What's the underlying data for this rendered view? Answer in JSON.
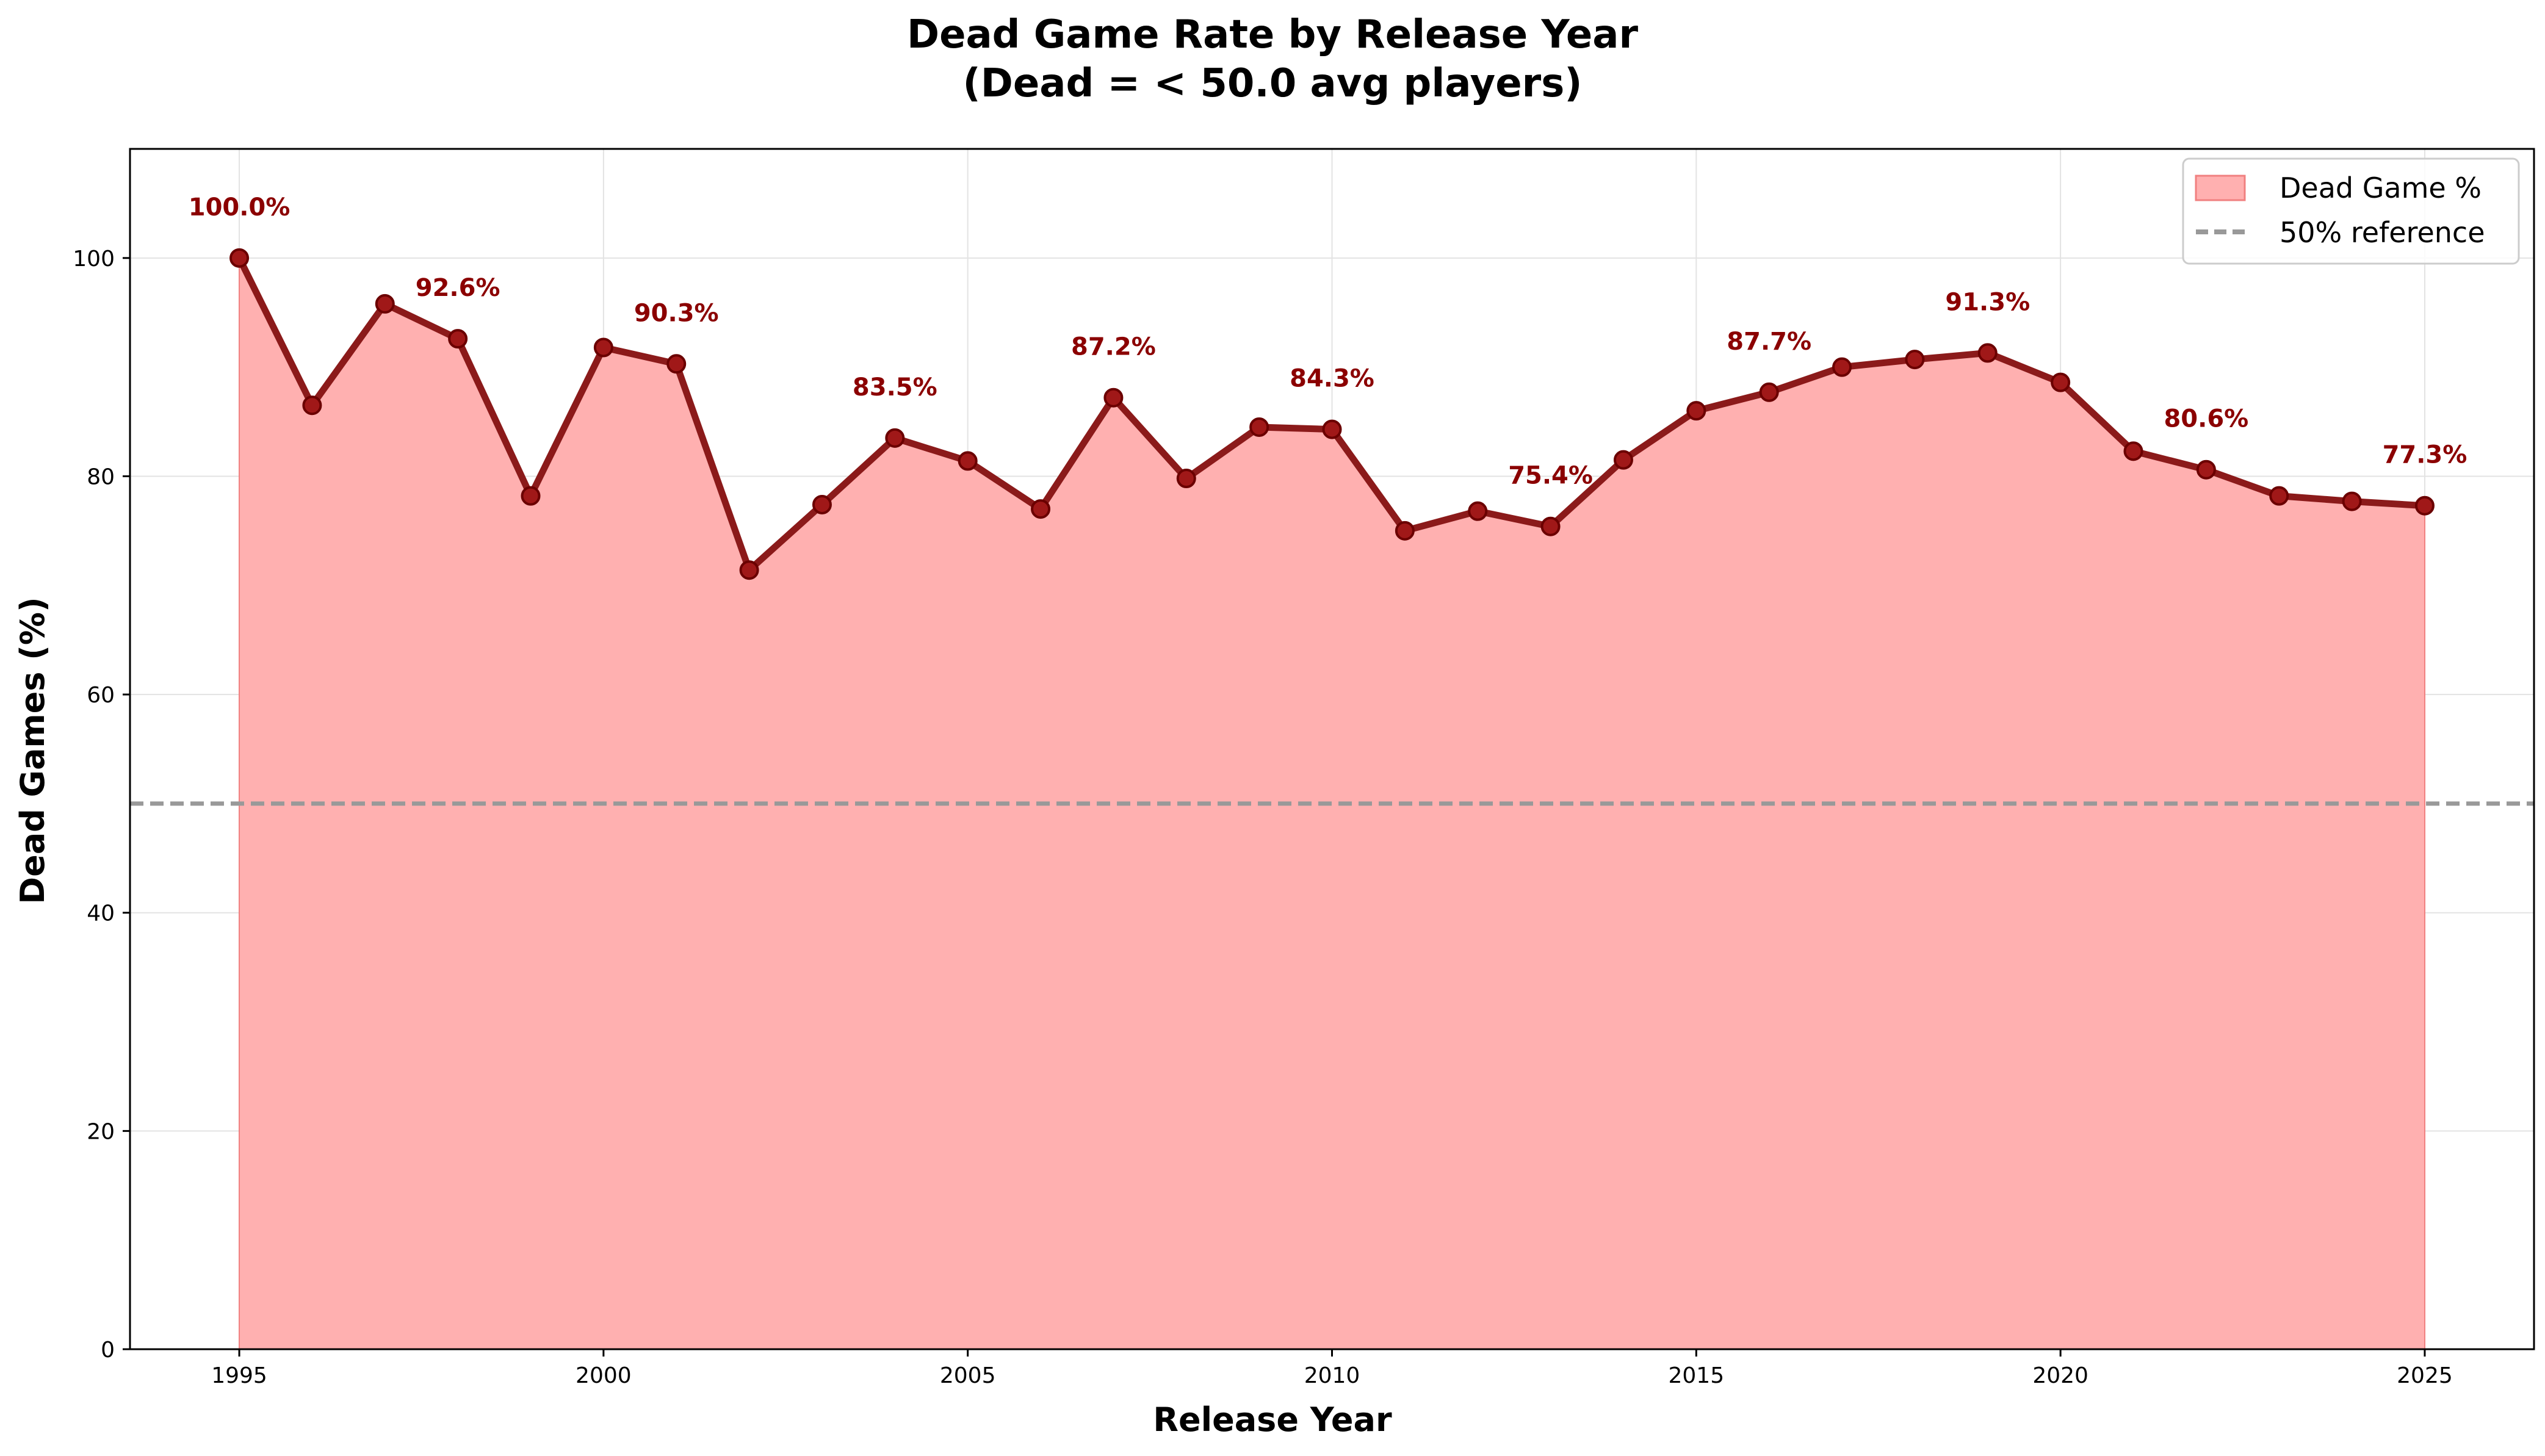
{
  "chart_data": {
    "type": "area",
    "title_line1": "Dead Game Rate by Release Year",
    "title_line2": "(Dead = < 50.0 avg players)",
    "xlabel": "Release Year",
    "ylabel": "Dead Games (%)",
    "xlim": [
      1993.5,
      2026.5
    ],
    "ylim": [
      0,
      110
    ],
    "x_ticks": [
      1995,
      2000,
      2005,
      2010,
      2015,
      2020,
      2025
    ],
    "y_ticks": [
      0,
      20,
      40,
      60,
      80,
      100
    ],
    "grid": true,
    "legend_position": "top-right",
    "series": [
      {
        "name": "Dead Game %",
        "color": "#8b1a1a",
        "fill_color": "#ffb0b0",
        "x": [
          1995,
          1996,
          1997,
          1998,
          1999,
          2000,
          2001,
          2002,
          2003,
          2004,
          2005,
          2006,
          2007,
          2008,
          2009,
          2010,
          2011,
          2012,
          2013,
          2014,
          2015,
          2016,
          2017,
          2018,
          2019,
          2020,
          2021,
          2022,
          2023,
          2024,
          2025
        ],
        "y": [
          100.0,
          86.5,
          95.8,
          92.6,
          78.2,
          91.8,
          90.3,
          71.4,
          77.4,
          83.5,
          81.4,
          77.0,
          87.2,
          79.8,
          84.5,
          84.3,
          75.0,
          76.8,
          75.4,
          81.5,
          86.0,
          87.7,
          90.0,
          90.7,
          91.3,
          88.6,
          82.3,
          80.6,
          78.2,
          77.7,
          77.3
        ]
      }
    ],
    "reference_line": {
      "name": "50% reference",
      "value": 50,
      "color": "#999999"
    },
    "annotations": [
      {
        "x": 1995,
        "y": 100.0,
        "text": "100.0%"
      },
      {
        "x": 1998,
        "y": 92.6,
        "text": "92.6%"
      },
      {
        "x": 2001,
        "y": 90.3,
        "text": "90.3%"
      },
      {
        "x": 2004,
        "y": 83.5,
        "text": "83.5%"
      },
      {
        "x": 2007,
        "y": 87.2,
        "text": "87.2%"
      },
      {
        "x": 2010,
        "y": 84.3,
        "text": "84.3%"
      },
      {
        "x": 2013,
        "y": 75.4,
        "text": "75.4%"
      },
      {
        "x": 2016,
        "y": 87.7,
        "text": "87.7%"
      },
      {
        "x": 2019,
        "y": 91.3,
        "text": "91.3%"
      },
      {
        "x": 2022,
        "y": 80.6,
        "text": "80.6%"
      },
      {
        "x": 2025,
        "y": 77.3,
        "text": "77.3%"
      }
    ]
  }
}
